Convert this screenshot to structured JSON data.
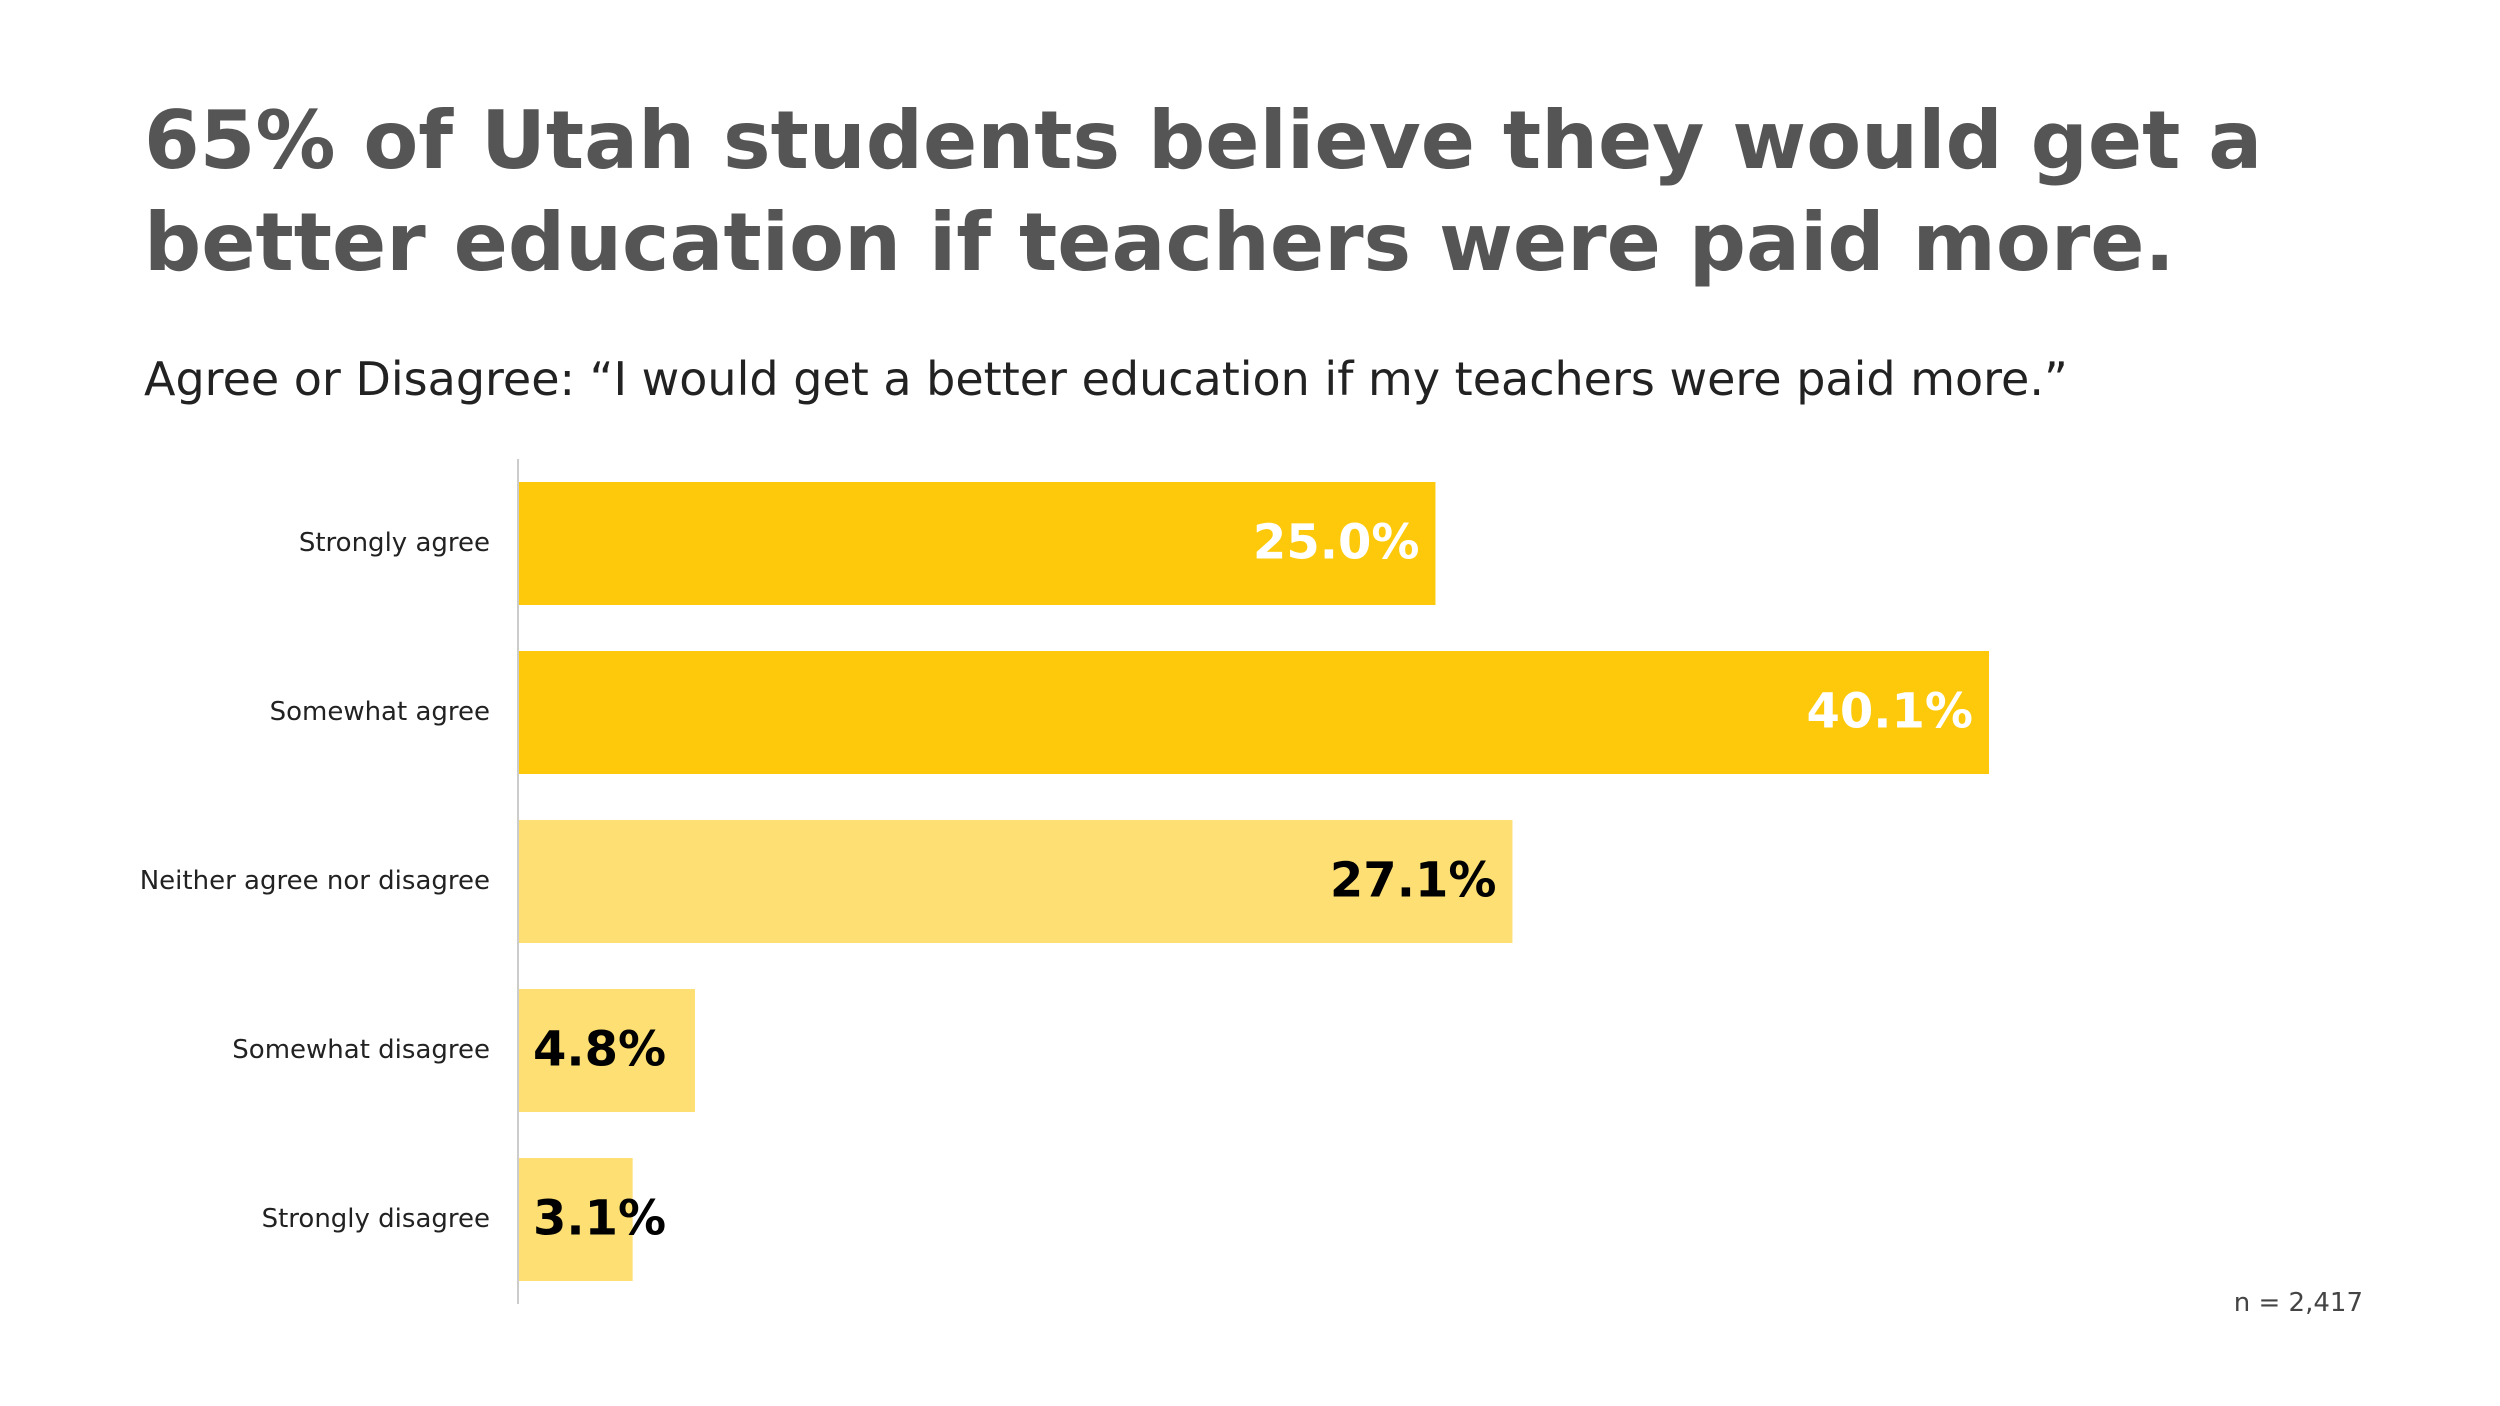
{
  "chart_data": {
    "type": "bar",
    "orientation": "horizontal",
    "title": "65% of Utah students believe they would get a better education if teachers were paid more.",
    "subtitle": "Agree or Disagree: “I would get a better education if my teachers were paid more.”",
    "categories": [
      "Strongly agree",
      "Somewhat agree",
      "Neither agree nor disagree",
      "Somewhat disagree",
      "Strongly disagree"
    ],
    "values": [
      25.0,
      40.1,
      27.1,
      4.8,
      3.1
    ],
    "value_labels": [
      "25.0%",
      "40.1%",
      "27.1%",
      "4.8%",
      "3.1%"
    ],
    "colors": [
      "#fec90a",
      "#fec90a",
      "#fddf73",
      "#fddf73",
      "#fddf73"
    ],
    "value_label_colors": [
      "#ffffff",
      "#ffffff",
      "#000000",
      "#000000",
      "#000000"
    ],
    "note": "n = 2,417"
  }
}
